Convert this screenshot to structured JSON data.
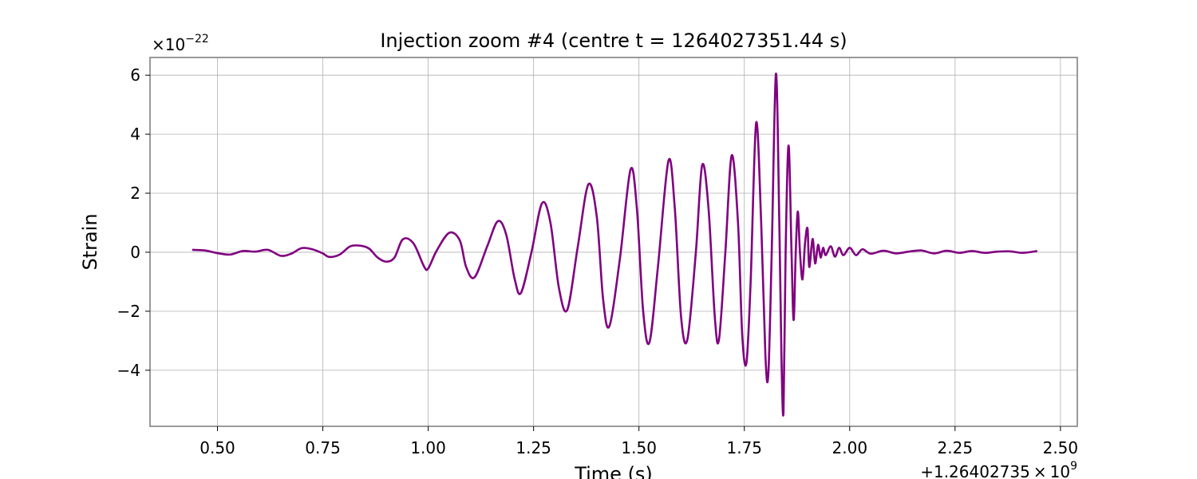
{
  "chart_data": {
    "type": "line",
    "title": "Injection zoom #4  (centre t = 1264027351.44 s)",
    "xlabel": "Time (s)",
    "ylabel": "Strain",
    "x_offset_text": "+1.26402735",
    "x_offset_times": "×",
    "x_offset_base": "10",
    "x_offset_exp": "9",
    "y_scale_prefix": "×",
    "y_scale_base": "10",
    "y_scale_exp": "−22",
    "xlim": [
      0.34,
      2.54
    ],
    "ylim": [
      -5.9,
      6.6
    ],
    "x_ticks": [
      {
        "value": 0.5,
        "label": "0.50"
      },
      {
        "value": 0.75,
        "label": "0.75"
      },
      {
        "value": 1.0,
        "label": "1.00"
      },
      {
        "value": 1.25,
        "label": "1.25"
      },
      {
        "value": 1.5,
        "label": "1.50"
      },
      {
        "value": 1.75,
        "label": "1.75"
      },
      {
        "value": 2.0,
        "label": "2.00"
      },
      {
        "value": 2.25,
        "label": "2.25"
      },
      {
        "value": 2.5,
        "label": "2.50"
      }
    ],
    "y_ticks": [
      {
        "value": 6,
        "label": "6"
      },
      {
        "value": 4,
        "label": "4"
      },
      {
        "value": 2,
        "label": "2"
      },
      {
        "value": 0,
        "label": "0"
      },
      {
        "value": -2,
        "label": "−2"
      },
      {
        "value": -4,
        "label": "−4"
      }
    ],
    "grid": true,
    "series": [
      {
        "color": "#800080",
        "points": [
          [
            0.44,
            0.08
          ],
          [
            0.47,
            0.06
          ],
          [
            0.5,
            -0.03
          ],
          [
            0.53,
            -0.08
          ],
          [
            0.56,
            0.04
          ],
          [
            0.59,
            0.02
          ],
          [
            0.62,
            0.08
          ],
          [
            0.65,
            -0.12
          ],
          [
            0.675,
            -0.05
          ],
          [
            0.7,
            0.14
          ],
          [
            0.725,
            0.1
          ],
          [
            0.75,
            -0.04
          ],
          [
            0.765,
            -0.16
          ],
          [
            0.79,
            -0.08
          ],
          [
            0.815,
            0.2
          ],
          [
            0.84,
            0.22
          ],
          [
            0.86,
            0.12
          ],
          [
            0.88,
            -0.18
          ],
          [
            0.9,
            -0.32
          ],
          [
            0.92,
            -0.18
          ],
          [
            0.94,
            0.44
          ],
          [
            0.965,
            0.3
          ],
          [
            0.99,
            -0.48
          ],
          [
            1.0,
            -0.55
          ],
          [
            1.02,
            0.05
          ],
          [
            1.05,
            0.66
          ],
          [
            1.075,
            0.4
          ],
          [
            1.09,
            -0.5
          ],
          [
            1.11,
            -0.85
          ],
          [
            1.14,
            0.2
          ],
          [
            1.165,
            1.05
          ],
          [
            1.185,
            0.6
          ],
          [
            1.205,
            -0.9
          ],
          [
            1.22,
            -1.38
          ],
          [
            1.245,
            0.0
          ],
          [
            1.27,
            1.66
          ],
          [
            1.29,
            1.0
          ],
          [
            1.31,
            -1.2
          ],
          [
            1.33,
            -1.95
          ],
          [
            1.355,
            0.2
          ],
          [
            1.38,
            2.3
          ],
          [
            1.4,
            1.2
          ],
          [
            1.415,
            -1.6
          ],
          [
            1.43,
            -2.5
          ],
          [
            1.455,
            -0.2
          ],
          [
            1.48,
            2.8
          ],
          [
            1.495,
            1.5
          ],
          [
            1.51,
            -2.0
          ],
          [
            1.525,
            -3.05
          ],
          [
            1.545,
            -0.5
          ],
          [
            1.57,
            3.1
          ],
          [
            1.585,
            1.5
          ],
          [
            1.6,
            -2.2
          ],
          [
            1.615,
            -2.95
          ],
          [
            1.635,
            0.0
          ],
          [
            1.65,
            2.95
          ],
          [
            1.665,
            1.5
          ],
          [
            1.68,
            -2.2
          ],
          [
            1.69,
            -2.95
          ],
          [
            1.705,
            0.0
          ],
          [
            1.72,
            3.28
          ],
          [
            1.735,
            1.0
          ],
          [
            1.745,
            -2.8
          ],
          [
            1.755,
            -3.75
          ],
          [
            1.765,
            -1.0
          ],
          [
            1.778,
            4.38
          ],
          [
            1.79,
            1.0
          ],
          [
            1.8,
            -3.5
          ],
          [
            1.807,
            -4.12
          ],
          [
            1.815,
            0.0
          ],
          [
            1.825,
            6.05
          ],
          [
            1.833,
            1.0
          ],
          [
            1.838,
            -3.5
          ],
          [
            1.843,
            -5.4
          ],
          [
            1.848,
            0.0
          ],
          [
            1.855,
            3.62
          ],
          [
            1.862,
            0.0
          ],
          [
            1.867,
            -2.3
          ],
          [
            1.872,
            0.0
          ],
          [
            1.877,
            1.38
          ],
          [
            1.882,
            0.0
          ],
          [
            1.888,
            -0.92
          ],
          [
            1.894,
            0.3
          ],
          [
            1.9,
            0.8
          ],
          [
            1.904,
            -0.5
          ],
          [
            1.912,
            0.45
          ],
          [
            1.918,
            -0.38
          ],
          [
            1.925,
            0.25
          ],
          [
            1.931,
            -0.18
          ],
          [
            1.937,
            0.15
          ],
          [
            1.943,
            -0.1
          ],
          [
            1.955,
            0.2
          ],
          [
            1.965,
            -0.15
          ],
          [
            1.975,
            0.15
          ],
          [
            1.985,
            -0.1
          ],
          [
            2.0,
            0.15
          ],
          [
            2.015,
            -0.1
          ],
          [
            2.03,
            0.1
          ],
          [
            2.05,
            -0.05
          ],
          [
            2.08,
            0.05
          ],
          [
            2.11,
            -0.04
          ],
          [
            2.14,
            0.02
          ],
          [
            2.17,
            0.06
          ],
          [
            2.2,
            -0.04
          ],
          [
            2.23,
            0.05
          ],
          [
            2.26,
            -0.02
          ],
          [
            2.29,
            0.04
          ],
          [
            2.32,
            -0.02
          ],
          [
            2.35,
            0.02
          ],
          [
            2.38,
            0.03
          ],
          [
            2.41,
            -0.02
          ],
          [
            2.445,
            0.04
          ]
        ]
      }
    ]
  }
}
